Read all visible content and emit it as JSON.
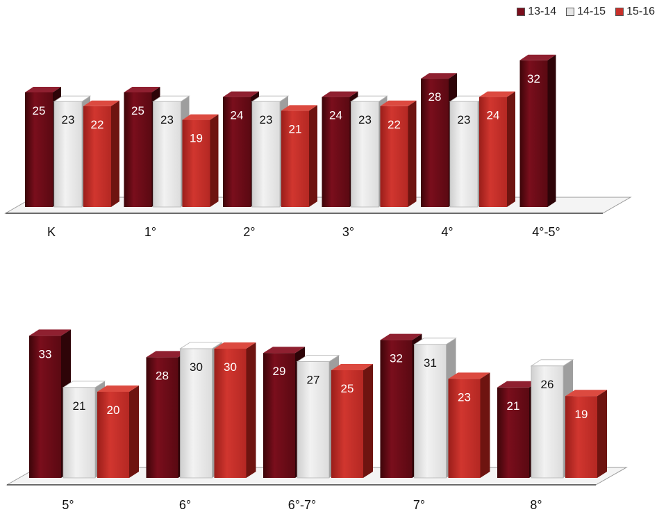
{
  "legend": [
    {
      "label": "13-14",
      "color": "#7a0e1c"
    },
    {
      "label": "14-15",
      "color": "#e6e6e6"
    },
    {
      "label": "15-16",
      "color": "#c8302a"
    }
  ],
  "chart_data": [
    {
      "type": "bar",
      "categories": [
        "K",
        "1°",
        "2°",
        "3°",
        "4°",
        "4°-5°"
      ],
      "series": [
        {
          "name": "13-14",
          "values": [
            25,
            25,
            24,
            24,
            28,
            32
          ]
        },
        {
          "name": "14-15",
          "values": [
            23,
            23,
            23,
            23,
            23,
            null
          ]
        },
        {
          "name": "15-16",
          "values": [
            22,
            19,
            21,
            22,
            24,
            null
          ]
        }
      ],
      "legend_position": "top-right"
    },
    {
      "type": "bar",
      "categories": [
        "5°",
        "6°",
        "6°-7°",
        "7°",
        "8°"
      ],
      "series": [
        {
          "name": "13-14",
          "values": [
            33,
            28,
            29,
            32,
            21
          ]
        },
        {
          "name": "14-15",
          "values": [
            21,
            30,
            27,
            31,
            26
          ]
        },
        {
          "name": "15-16",
          "values": [
            20,
            30,
            25,
            23,
            19
          ]
        }
      ]
    }
  ]
}
